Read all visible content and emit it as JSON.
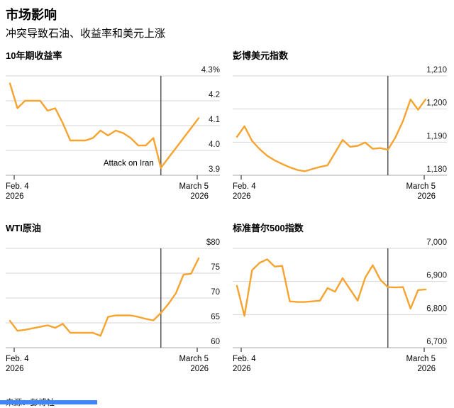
{
  "header": {
    "title": "市场影响",
    "subtitle": "冲突导致石油、收益率和美元上涨"
  },
  "footer": {
    "source": "来源：彭博社"
  },
  "colors": {
    "line": "#f6a32f",
    "event_line": "#3d3d3d",
    "grid": "#d6d6d6",
    "axis": "#aaaaaa",
    "tick": "#444444",
    "label_text": "#1a1a1a",
    "scrollbar": "#4285f4"
  },
  "chart_data": [
    {
      "type": "line",
      "title": "10年期收益率",
      "y_ticks": [
        "4.3%",
        "4.2",
        "4.1",
        "4.0",
        "3.9"
      ],
      "ylim": [
        3.9,
        4.3
      ],
      "x_start_line1": "Feb. 4",
      "x_start_line2": "2026",
      "x_end_line1": "March 5",
      "x_end_line2": "2026",
      "event_fraction": 0.8,
      "annotation": "Attack on Iran",
      "annotation_value": 3.95,
      "values": [
        4.27,
        4.17,
        4.2,
        4.2,
        4.2,
        4.16,
        4.17,
        4.11,
        4.04,
        4.04,
        4.04,
        4.05,
        4.08,
        4.06,
        4.08,
        4.07,
        4.05,
        4.02,
        4.02,
        4.05,
        3.93,
        3.97,
        4.01,
        4.05,
        4.09,
        4.13
      ]
    },
    {
      "type": "line",
      "title": "彭博美元指数",
      "y_ticks": [
        "1,210",
        "1,200",
        "1,190",
        "1,180"
      ],
      "ylim": [
        1180,
        1210
      ],
      "x_start_line1": "Feb. 4",
      "x_start_line2": "2026",
      "x_end_line1": "March 5",
      "x_end_line2": "2026",
      "event_fraction": 0.8,
      "values": [
        1191.6,
        1194.8,
        1190.4,
        1187.9,
        1185.9,
        1184.5,
        1183.4,
        1182.4,
        1181.6,
        1181.2,
        1181.9,
        1182.5,
        1183.0,
        1186.8,
        1190.7,
        1188.6,
        1188.9,
        1189.9,
        1188.0,
        1188.2,
        1187.7,
        1191.4,
        1196.4,
        1202.9,
        1199.8,
        1202.9
      ]
    },
    {
      "type": "line",
      "title": "WTI原油",
      "y_ticks": [
        "$80",
        "75",
        "70",
        "65",
        "60"
      ],
      "ylim": [
        60,
        80
      ],
      "x_start_line1": "Feb. 4",
      "x_start_line2": "2026",
      "x_end_line1": "March 5",
      "x_end_line2": "2026",
      "event_fraction": 0.8,
      "values": [
        65.4,
        63.4,
        63.6,
        63.9,
        64.2,
        64.5,
        64.0,
        64.8,
        63.0,
        63.0,
        63.0,
        63.0,
        62.4,
        66.2,
        66.5,
        66.5,
        66.5,
        66.2,
        65.8,
        65.5,
        67.0,
        68.8,
        71.0,
        74.7,
        74.9,
        78.0
      ]
    },
    {
      "type": "line",
      "title": "标准普尔500指数",
      "y_ticks": [
        "7,000",
        "6,900",
        "6,800",
        "6,700"
      ],
      "ylim": [
        6700,
        7000
      ],
      "x_start_line1": "Feb. 4",
      "x_start_line2": "2026",
      "x_end_line1": "March 5",
      "x_end_line2": "2026",
      "event_fraction": 0.8,
      "values": [
        6887,
        6796,
        6934,
        6956,
        6967,
        6945,
        6947,
        6840,
        6838,
        6838,
        6840,
        6842,
        6880,
        6869,
        6910,
        6876,
        6842,
        6912,
        6949,
        6905,
        6883,
        6882,
        6883,
        6818,
        6874,
        6876
      ]
    }
  ]
}
